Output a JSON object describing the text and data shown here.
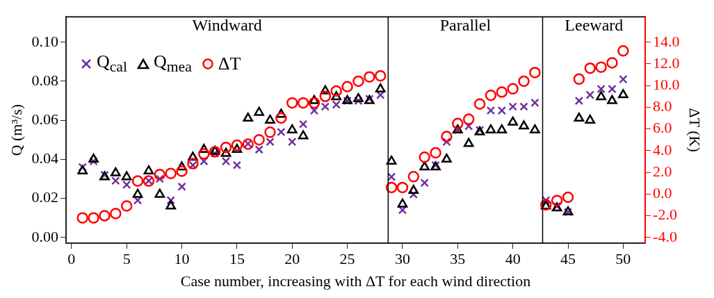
{
  "chart_data": {
    "type": "scatter",
    "xlabel": "Case number, increasing with ΔT for each wind direction",
    "ylabel": "Q (m³/s)",
    "y2label": "ΔT (K)",
    "x": [
      1,
      2,
      3,
      4,
      5,
      6,
      7,
      8,
      9,
      10,
      11,
      12,
      13,
      14,
      15,
      16,
      17,
      18,
      19,
      20,
      21,
      22,
      23,
      24,
      25,
      26,
      27,
      28,
      29,
      30,
      31,
      32,
      33,
      34,
      35,
      36,
      37,
      38,
      39,
      40,
      41,
      42,
      43,
      44,
      45,
      46,
      47,
      48,
      49,
      50
    ],
    "series": [
      {
        "name": "Q$_{cal}$",
        "color": "#7030a0",
        "marker": "cross",
        "values": [
          0.036,
          0.039,
          0.032,
          0.029,
          0.027,
          0.019,
          0.029,
          0.03,
          0.019,
          0.026,
          0.037,
          0.039,
          0.043,
          0.039,
          0.037,
          0.048,
          0.045,
          0.049,
          0.054,
          0.049,
          0.058,
          0.065,
          0.067,
          0.068,
          0.07,
          0.07,
          0.071,
          0.073,
          0.031,
          0.014,
          0.022,
          0.028,
          0.037,
          0.049,
          0.055,
          0.057,
          0.055,
          0.065,
          0.065,
          0.067,
          0.067,
          0.069,
          0.019,
          0.016,
          0.013,
          0.07,
          0.073,
          0.076,
          0.076,
          0.081
        ]
      },
      {
        "name": "Q$_{mea}$",
        "color": "#000000",
        "marker": "triangle",
        "values": [
          0.034,
          0.04,
          0.031,
          0.033,
          0.031,
          0.022,
          0.034,
          0.022,
          0.016,
          0.036,
          0.041,
          0.045,
          0.044,
          0.043,
          0.045,
          0.061,
          0.064,
          0.06,
          0.063,
          0.055,
          0.052,
          0.07,
          0.075,
          0.072,
          0.07,
          0.071,
          0.07,
          0.076,
          0.039,
          0.017,
          0.024,
          0.036,
          0.036,
          0.04,
          0.055,
          0.048,
          0.054,
          0.055,
          0.055,
          0.059,
          0.057,
          0.055,
          0.016,
          0.015,
          0.013,
          0.061,
          0.06,
          0.072,
          0.07,
          0.073
        ]
      },
      {
        "name": "ΔT",
        "color": "#ff0000",
        "marker": "circle",
        "axis": "y2",
        "values": [
          -2.2,
          -2.2,
          -2.0,
          -1.8,
          -1.1,
          1.2,
          1.2,
          1.8,
          1.9,
          2.1,
          2.8,
          3.7,
          3.9,
          4.3,
          4.5,
          4.6,
          5.0,
          5.7,
          7.0,
          8.4,
          8.4,
          8.4,
          9.0,
          9.5,
          9.9,
          10.4,
          10.8,
          10.9,
          0.6,
          0.6,
          1.6,
          3.4,
          3.8,
          5.3,
          6.5,
          6.9,
          8.3,
          9.1,
          9.4,
          9.7,
          10.4,
          11.2,
          -1.0,
          -0.6,
          -0.3,
          10.6,
          11.6,
          11.7,
          12.1,
          13.2
        ]
      }
    ],
    "xlim": [
      -0.5,
      52
    ],
    "xticks": [
      0,
      5,
      10,
      15,
      20,
      25,
      30,
      35,
      40,
      45,
      50
    ],
    "ylim": [
      -0.003,
      0.113
    ],
    "yticks": [
      {
        "value": 0,
        "label": "0.00"
      },
      {
        "value": 0.02,
        "label": "0.02"
      },
      {
        "value": 0.04,
        "label": "0.04"
      },
      {
        "value": 0.06,
        "label": "0.06"
      },
      {
        "value": 0.08,
        "label": "0.08"
      },
      {
        "value": 0.1,
        "label": "0.10"
      }
    ],
    "y2lim": [
      -4.54,
      16.34
    ],
    "y2ticks": [
      {
        "value": -4,
        "label": "-4.0"
      },
      {
        "value": -2,
        "label": "-2.0"
      },
      {
        "value": 0,
        "label": "0.0"
      },
      {
        "value": 2,
        "label": "2.0"
      },
      {
        "value": 4,
        "label": "4.0"
      },
      {
        "value": 6,
        "label": "6.0"
      },
      {
        "value": 8,
        "label": "8.0"
      },
      {
        "value": 10,
        "label": "10.0"
      },
      {
        "value": 12,
        "label": "12.0"
      },
      {
        "value": 14,
        "label": "14.0"
      }
    ],
    "ref_lines": [
      {
        "axis": "x",
        "value": 28.7,
        "color": "#000000"
      },
      {
        "axis": "x",
        "value": 42.7,
        "color": "#000000"
      }
    ],
    "annotations": [
      "Windward",
      "Parallel",
      "Leeward"
    ],
    "grid": false,
    "legend": "top left"
  }
}
